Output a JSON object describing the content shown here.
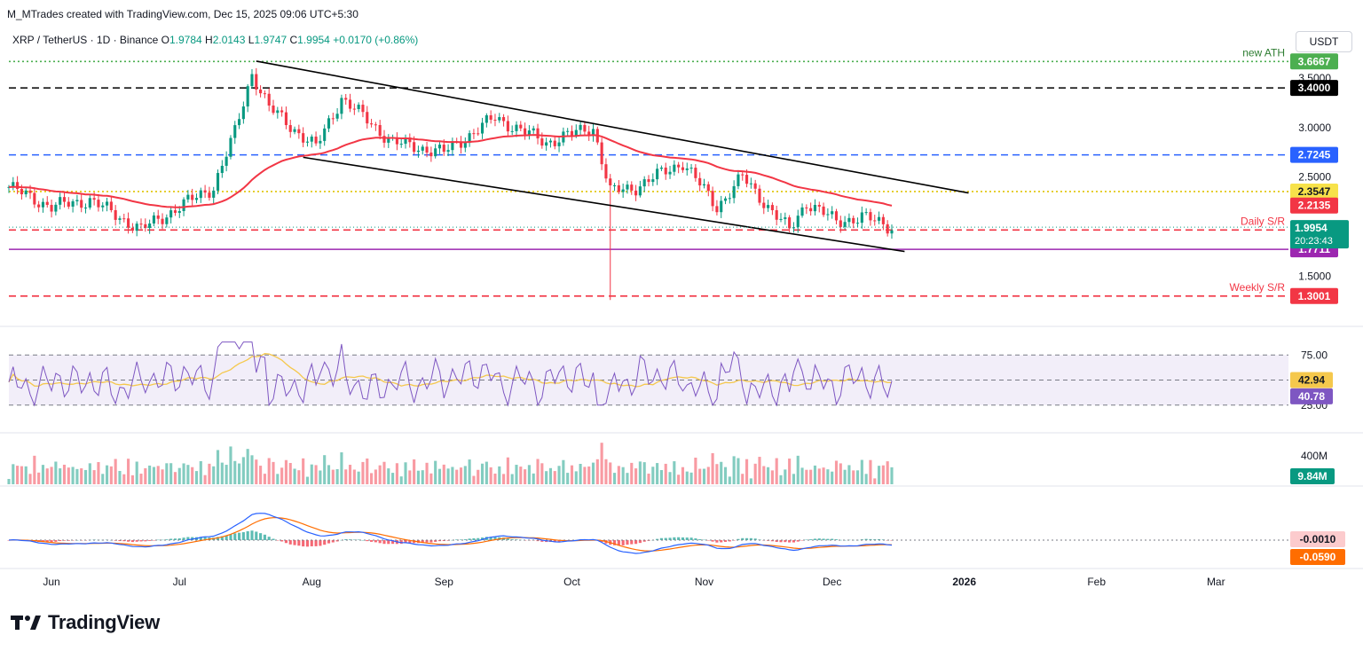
{
  "header": {
    "created_by": "M_MTrades created with TradingView.com, Dec 15, 2025 09:06 UTC+5:30",
    "symbol": "XRP / TetherUS · 1D · Binance",
    "o_label": "O",
    "o_value": "1.9784",
    "h_label": "H",
    "h_value": "2.0143",
    "l_label": "L",
    "l_value": "1.9747",
    "c_label": "C",
    "c_value": "1.9954",
    "change": "+0.0170 (+0.86%)",
    "currency": "USDT"
  },
  "logo_text": "TradingView",
  "chart_data": {
    "type": "candlestick",
    "price_axis": {
      "range": [
        1.2,
        3.75
      ],
      "ticks": [
        "3.5000",
        "3.0000",
        "2.5000",
        "1.5000"
      ],
      "ticks_values": [
        3.5,
        3.0,
        2.5,
        1.5
      ]
    },
    "time_axis": {
      "labels": [
        "Jun",
        "Jul",
        "Aug",
        "Sep",
        "Oct",
        "Nov",
        "Dec",
        "2026",
        "Feb",
        "Mar"
      ],
      "dates": [
        "2025-06-01",
        "2025-07-01",
        "2025-08-01",
        "2025-09-01",
        "2025-10-01",
        "2025-11-01",
        "2025-12-01",
        "2026-01-01",
        "2026-02-01",
        "2026-03-01"
      ],
      "start": "2025-05-22",
      "end": "2026-03-18"
    },
    "horizontal_levels": [
      {
        "value": 3.6667,
        "label": "3.6667",
        "note": "new ATH",
        "color": "#4caf50",
        "style": "dotted"
      },
      {
        "value": 3.4,
        "label": "3.4000",
        "color": "#000000",
        "style": "dashed"
      },
      {
        "value": 2.7245,
        "label": "2.7245",
        "color": "#2962ff",
        "style": "dashed"
      },
      {
        "value": 2.3547,
        "label": "2.3547",
        "color": "#e0c400",
        "style": "dotted"
      },
      {
        "value": 1.9669,
        "label": "1.9669",
        "note": "Daily S/R",
        "color": "#f23645",
        "style": "dashed"
      },
      {
        "value": 1.7711,
        "label": "1.7711",
        "color": "#9c27b0",
        "style": "solid"
      },
      {
        "value": 1.3001,
        "label": "1.3001",
        "note": "Weekly S/R",
        "color": "#f23645",
        "style": "dashed"
      }
    ],
    "ema_label": "2.2135",
    "ema_color": "#f23645",
    "last_price": {
      "value": 1.9954,
      "label": "1.9954",
      "countdown": "20:23:43",
      "color": "#089981"
    },
    "channel": {
      "upper": [
        [
          "2025-07-19",
          3.67
        ],
        [
          "2026-01-02",
          2.34
        ]
      ],
      "lower": [
        [
          "2025-07-30",
          2.7
        ],
        [
          "2025-12-18",
          1.75
        ]
      ],
      "color": "#000000"
    },
    "key_closes": [
      [
        "2025-05-22",
        2.4
      ],
      [
        "2025-06-01",
        2.2
      ],
      [
        "2025-06-10",
        2.27
      ],
      [
        "2025-06-22",
        1.97
      ],
      [
        "2025-07-01",
        2.2
      ],
      [
        "2025-07-09",
        2.4
      ],
      [
        "2025-07-14",
        2.95
      ],
      [
        "2025-07-18",
        3.55
      ],
      [
        "2025-07-22",
        3.2
      ],
      [
        "2025-08-02",
        2.8
      ],
      [
        "2025-08-08",
        3.3
      ],
      [
        "2025-08-20",
        2.85
      ],
      [
        "2025-09-01",
        2.75
      ],
      [
        "2025-09-13",
        3.1
      ],
      [
        "2025-09-25",
        2.85
      ],
      [
        "2025-10-02",
        2.95
      ],
      [
        "2025-10-06",
        3.0
      ],
      [
        "2025-10-10",
        2.35
      ],
      [
        "2025-10-16",
        2.4
      ],
      [
        "2025-10-27",
        2.65
      ],
      [
        "2025-11-04",
        2.2
      ],
      [
        "2025-11-10",
        2.5
      ],
      [
        "2025-11-21",
        1.96
      ],
      [
        "2025-11-25",
        2.25
      ],
      [
        "2025-12-02",
        2.05
      ],
      [
        "2025-12-08",
        2.1
      ],
      [
        "2025-12-15",
        1.9954
      ]
    ],
    "rsi": {
      "upper": 75,
      "lower": 25,
      "mid": 50,
      "ticks": [
        "75.00",
        "25.00"
      ],
      "value_labels": [
        {
          "label": "42.94",
          "color": "#f5c84c",
          "value": 42.94
        },
        {
          "label": "40.78",
          "color": "#7e57c2",
          "value": 40.78
        }
      ]
    },
    "volume": {
      "tick": "400M",
      "last": "9.84M",
      "last_color": "#089981"
    },
    "macd": {
      "value_labels": [
        {
          "label": "-0.0010",
          "color": "#fccbcd",
          "value": -0.001
        },
        {
          "label": "-0.0590",
          "color": "#ff6d00",
          "value": -0.059
        }
      ]
    }
  }
}
